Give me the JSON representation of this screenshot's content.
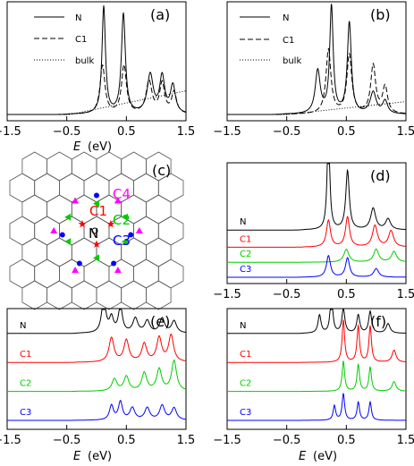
{
  "chart_data": [
    {
      "panel": "(a)",
      "type": "line",
      "xlabel_var": "E",
      "xlabel_unit": "(eV)",
      "x_ticks": [
        "−1.5",
        "−0.5",
        "0.5",
        "1.5"
      ],
      "xlim": [
        -1.5,
        1.5
      ],
      "legend": {
        "position": "top-left",
        "entries": [
          "N",
          "C1",
          "bulk"
        ]
      },
      "series": [
        {
          "name": "N",
          "style": "solid",
          "peaks": [
            [
              0.12,
              1.0
            ],
            [
              0.45,
              0.93
            ],
            [
              0.9,
              0.36
            ],
            [
              1.1,
              0.34
            ],
            [
              1.28,
              0.26
            ]
          ],
          "widths": [
            0.035,
            0.04,
            0.06,
            0.05,
            0.05
          ],
          "edge": -0.45,
          "offset": 0
        },
        {
          "name": "C1",
          "style": "dashed",
          "peaks": [
            [
              0.1,
              0.45
            ],
            [
              0.46,
              0.45
            ],
            [
              0.88,
              0.3
            ],
            [
              1.1,
              0.28
            ],
            [
              1.3,
              0.2
            ]
          ],
          "widths": [
            0.05,
            0.05,
            0.06,
            0.05,
            0.05
          ],
          "edge": -0.45,
          "offset": 0
        },
        {
          "name": "bulk",
          "style": "dotted",
          "linear": [
            [
              -1.5,
              0.0
            ],
            [
              -0.45,
              0.0
            ],
            [
              1.5,
              0.22
            ]
          ],
          "offset": 0
        }
      ]
    },
    {
      "panel": "(b)",
      "type": "line",
      "x_ticks": [
        "−1.5",
        "−0.5",
        "0.5",
        "1.5"
      ],
      "xlim": [
        -1.5,
        1.5
      ],
      "legend": {
        "position": "top-left",
        "entries": [
          "N",
          "C1",
          "bulk"
        ]
      },
      "series": [
        {
          "name": "N",
          "style": "solid",
          "peaks": [
            [
              0.02,
              0.4
            ],
            [
              0.25,
              1.0
            ],
            [
              0.55,
              0.85
            ],
            [
              0.95,
              0.2
            ],
            [
              1.15,
              0.12
            ]
          ],
          "widths": [
            0.05,
            0.035,
            0.04,
            0.06,
            0.05
          ],
          "edge": -0.55,
          "offset": 0
        },
        {
          "name": "C1",
          "style": "dashed",
          "peaks": [
            [
              0.2,
              0.6
            ],
            [
              0.55,
              0.55
            ],
            [
              0.95,
              0.45
            ],
            [
              1.15,
              0.25
            ]
          ],
          "widths": [
            0.05,
            0.05,
            0.05,
            0.05
          ],
          "edge": -0.55,
          "offset": 0
        },
        {
          "name": "bulk",
          "style": "dotted",
          "linear": [
            [
              -1.5,
              0.0
            ],
            [
              -0.5,
              0.0
            ],
            [
              1.5,
              0.12
            ]
          ],
          "offset": 0
        }
      ]
    },
    {
      "panel": "(d)",
      "type": "line",
      "x_ticks": [
        "−1.5",
        "−0.5",
        "0.5",
        "1.5"
      ],
      "xlim": [
        -1.5,
        1.5
      ],
      "series": [
        {
          "name": "N",
          "color": "#000000",
          "peaks": [
            [
              0.2,
              1.0
            ],
            [
              0.52,
              0.55
            ],
            [
              0.95,
              0.2
            ],
            [
              1.2,
              0.1
            ]
          ],
          "widths": [
            0.025,
            0.035,
            0.05,
            0.05
          ],
          "edge": -0.2,
          "offset": 0.44
        },
        {
          "name": "C1",
          "color": "#ff0000",
          "peaks": [
            [
              0.2,
              0.25
            ],
            [
              0.52,
              0.28
            ],
            [
              0.98,
              0.2
            ],
            [
              1.25,
              0.15
            ]
          ],
          "widths": [
            0.04,
            0.04,
            0.05,
            0.05
          ],
          "edge": -0.2,
          "offset": 0.28
        },
        {
          "name": "C2",
          "color": "#00cc00",
          "peaks": [
            [
              0.5,
              0.12
            ],
            [
              1.0,
              0.12
            ],
            [
              1.3,
              0.1
            ]
          ],
          "widths": [
            0.05,
            0.05,
            0.05
          ],
          "edge": -0.2,
          "offset": 0.14
        },
        {
          "name": "C3",
          "color": "#0000ff",
          "peaks": [
            [
              0.2,
              0.2
            ],
            [
              0.52,
              0.18
            ],
            [
              1.0,
              0.08
            ]
          ],
          "widths": [
            0.04,
            0.04,
            0.05
          ],
          "edge": -0.2,
          "offset": 0.0
        }
      ]
    },
    {
      "panel": "(e)",
      "type": "line",
      "xlabel_var": "E",
      "xlabel_unit": "(eV)",
      "x_ticks": [
        "−1.5",
        "−0.5",
        "0.5",
        "1.5"
      ],
      "xlim": [
        -1.5,
        1.5
      ],
      "series": [
        {
          "name": "N",
          "color": "#000000",
          "peaks": [
            [
              0.12,
              0.3
            ],
            [
              0.25,
              0.12
            ],
            [
              0.4,
              0.22
            ],
            [
              0.65,
              0.12
            ],
            [
              0.85,
              0.1
            ],
            [
              1.1,
              0.12
            ],
            [
              1.3,
              0.1
            ]
          ],
          "widths": [
            0.04,
            0.04,
            0.04,
            0.05,
            0.05,
            0.05,
            0.05
          ],
          "edge": -0.3,
          "offset": 0.72
        },
        {
          "name": "C1",
          "color": "#ff0000",
          "peaks": [
            [
              0.25,
              0.2
            ],
            [
              0.5,
              0.18
            ],
            [
              0.8,
              0.15
            ],
            [
              1.05,
              0.2
            ],
            [
              1.25,
              0.22
            ]
          ],
          "widths": [
            0.05,
            0.05,
            0.05,
            0.05,
            0.05
          ],
          "edge": -0.3,
          "offset": 0.48
        },
        {
          "name": "C2",
          "color": "#00cc00",
          "peaks": [
            [
              0.3,
              0.1
            ],
            [
              0.5,
              0.12
            ],
            [
              0.8,
              0.15
            ],
            [
              1.05,
              0.18
            ],
            [
              1.3,
              0.25
            ]
          ],
          "widths": [
            0.05,
            0.05,
            0.05,
            0.05,
            0.05
          ],
          "edge": -0.3,
          "offset": 0.24
        },
        {
          "name": "C3",
          "color": "#0000ff",
          "peaks": [
            [
              0.25,
              0.12
            ],
            [
              0.4,
              0.15
            ],
            [
              0.6,
              0.1
            ],
            [
              0.85,
              0.1
            ],
            [
              1.1,
              0.12
            ],
            [
              1.3,
              0.1
            ]
          ],
          "widths": [
            0.04,
            0.04,
            0.05,
            0.05,
            0.05,
            0.05
          ],
          "edge": -0.3,
          "offset": 0.0
        }
      ]
    },
    {
      "panel": "(f)",
      "type": "line",
      "xlabel_var": "E",
      "xlabel_unit": "(eV)",
      "x_ticks": [
        "−1.5",
        "−0.5",
        "0.5",
        "1.5"
      ],
      "xlim": [
        -1.5,
        1.5
      ],
      "series": [
        {
          "name": "N",
          "color": "#000000",
          "peaks": [
            [
              0.05,
              0.15
            ],
            [
              0.25,
              0.35
            ],
            [
              0.45,
              0.2
            ],
            [
              0.7,
              0.15
            ],
            [
              0.9,
              0.18
            ],
            [
              1.2,
              0.08
            ]
          ],
          "widths": [
            0.03,
            0.025,
            0.03,
            0.03,
            0.03,
            0.04
          ],
          "edge": -0.2,
          "offset": 0.72
        },
        {
          "name": "C1",
          "color": "#ff0000",
          "peaks": [
            [
              0.45,
              0.35
            ],
            [
              0.7,
              0.3
            ],
            [
              0.9,
              0.3
            ],
            [
              1.3,
              0.1
            ]
          ],
          "widths": [
            0.025,
            0.025,
            0.025,
            0.04
          ],
          "edge": -0.2,
          "offset": 0.48
        },
        {
          "name": "C2",
          "color": "#00cc00",
          "peaks": [
            [
              0.45,
              0.25
            ],
            [
              0.7,
              0.22
            ],
            [
              0.9,
              0.2
            ],
            [
              1.3,
              0.08
            ]
          ],
          "widths": [
            0.025,
            0.025,
            0.025,
            0.04
          ],
          "edge": -0.2,
          "offset": 0.24
        },
        {
          "name": "C3",
          "color": "#0000ff",
          "peaks": [
            [
              0.3,
              0.12
            ],
            [
              0.45,
              0.22
            ],
            [
              0.7,
              0.15
            ],
            [
              0.9,
              0.15
            ]
          ],
          "widths": [
            0.025,
            0.025,
            0.025,
            0.025
          ],
          "edge": -0.2,
          "offset": 0.0
        }
      ]
    }
  ],
  "panel_c": {
    "label": "(c)",
    "center_label": "N",
    "site_labels": [
      {
        "text": "C4",
        "color": "#ff00ff"
      },
      {
        "text": "C1",
        "color": "#ff0000"
      },
      {
        "text": "C2",
        "color": "#00cc00"
      },
      {
        "text": "C3",
        "color": "#0000ff"
      }
    ]
  }
}
